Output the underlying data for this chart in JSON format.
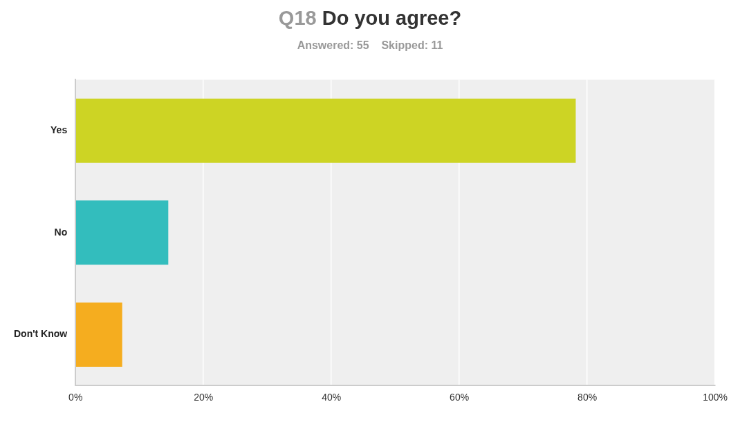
{
  "chart_data": {
    "type": "bar",
    "orientation": "horizontal",
    "title": "Q18 Do you agree?",
    "subtitle": "Answered: 55    Skipped: 11",
    "categories": [
      "Yes",
      "No",
      "Don't Know"
    ],
    "values": [
      78.2,
      14.5,
      7.3
    ],
    "colors": [
      "#cdd424",
      "#33bdbd",
      "#f5ad1f"
    ],
    "xlim": [
      0,
      100
    ],
    "xticks": [
      {
        "value": 0,
        "label": "0%"
      },
      {
        "value": 20,
        "label": "20%"
      },
      {
        "value": 40,
        "label": "40%"
      },
      {
        "value": 60,
        "label": "60%"
      },
      {
        "value": 80,
        "label": "80%"
      },
      {
        "value": 100,
        "label": "100%"
      }
    ],
    "grid": "x",
    "legend": false
  }
}
